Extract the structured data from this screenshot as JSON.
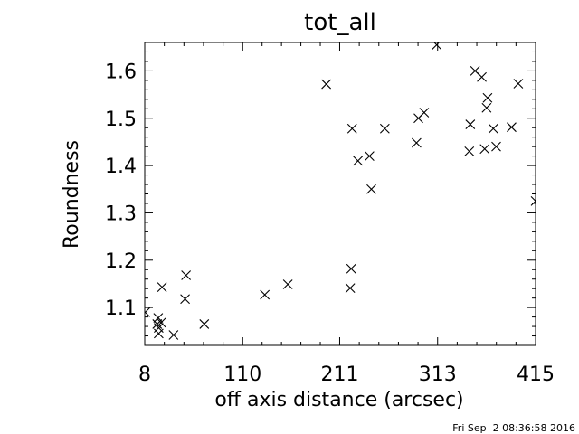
{
  "chart_data": {
    "type": "scatter",
    "title": "tot_all",
    "xlabel": "off axis distance (arcsec)",
    "ylabel": "Roundness",
    "xlim": [
      8,
      415
    ],
    "ylim": [
      1.02,
      1.66
    ],
    "xticks": [
      8,
      110,
      211,
      313,
      415
    ],
    "xtick_labels": [
      "8",
      "110",
      "211",
      "313",
      "415"
    ],
    "yticks": [
      1.1,
      1.2,
      1.3,
      1.4,
      1.5,
      1.6
    ],
    "ytick_labels": [
      "1.1",
      "1.2",
      "1.3",
      "1.4",
      "1.5",
      "1.6"
    ],
    "grid": false,
    "marker": "x",
    "points": [
      {
        "x": 8.5,
        "y": 1.09
      },
      {
        "x": 21,
        "y": 1.065
      },
      {
        "x": 22,
        "y": 1.078
      },
      {
        "x": 22.5,
        "y": 1.057
      },
      {
        "x": 22.5,
        "y": 1.045
      },
      {
        "x": 25,
        "y": 1.068
      },
      {
        "x": 26,
        "y": 1.143
      },
      {
        "x": 38,
        "y": 1.042
      },
      {
        "x": 50,
        "y": 1.118
      },
      {
        "x": 51,
        "y": 1.168
      },
      {
        "x": 70,
        "y": 1.065
      },
      {
        "x": 133,
        "y": 1.127
      },
      {
        "x": 157,
        "y": 1.149
      },
      {
        "x": 197,
        "y": 1.572
      },
      {
        "x": 222,
        "y": 1.141
      },
      {
        "x": 223,
        "y": 1.182
      },
      {
        "x": 224,
        "y": 1.478
      },
      {
        "x": 230,
        "y": 1.41
      },
      {
        "x": 242,
        "y": 1.42
      },
      {
        "x": 244,
        "y": 1.35
      },
      {
        "x": 258,
        "y": 1.478
      },
      {
        "x": 291,
        "y": 1.448
      },
      {
        "x": 293,
        "y": 1.5
      },
      {
        "x": 299,
        "y": 1.512
      },
      {
        "x": 312,
        "y": 1.655
      },
      {
        "x": 346,
        "y": 1.43
      },
      {
        "x": 347,
        "y": 1.487
      },
      {
        "x": 352,
        "y": 1.6
      },
      {
        "x": 359,
        "y": 1.587
      },
      {
        "x": 362,
        "y": 1.435
      },
      {
        "x": 364,
        "y": 1.522
      },
      {
        "x": 365,
        "y": 1.543
      },
      {
        "x": 371,
        "y": 1.478
      },
      {
        "x": 374,
        "y": 1.44
      },
      {
        "x": 390,
        "y": 1.481
      },
      {
        "x": 397,
        "y": 1.573
      },
      {
        "x": 415,
        "y": 1.325
      }
    ]
  },
  "footer": {
    "timestamp": "Fri Sep  2 08:36:58 2016"
  }
}
